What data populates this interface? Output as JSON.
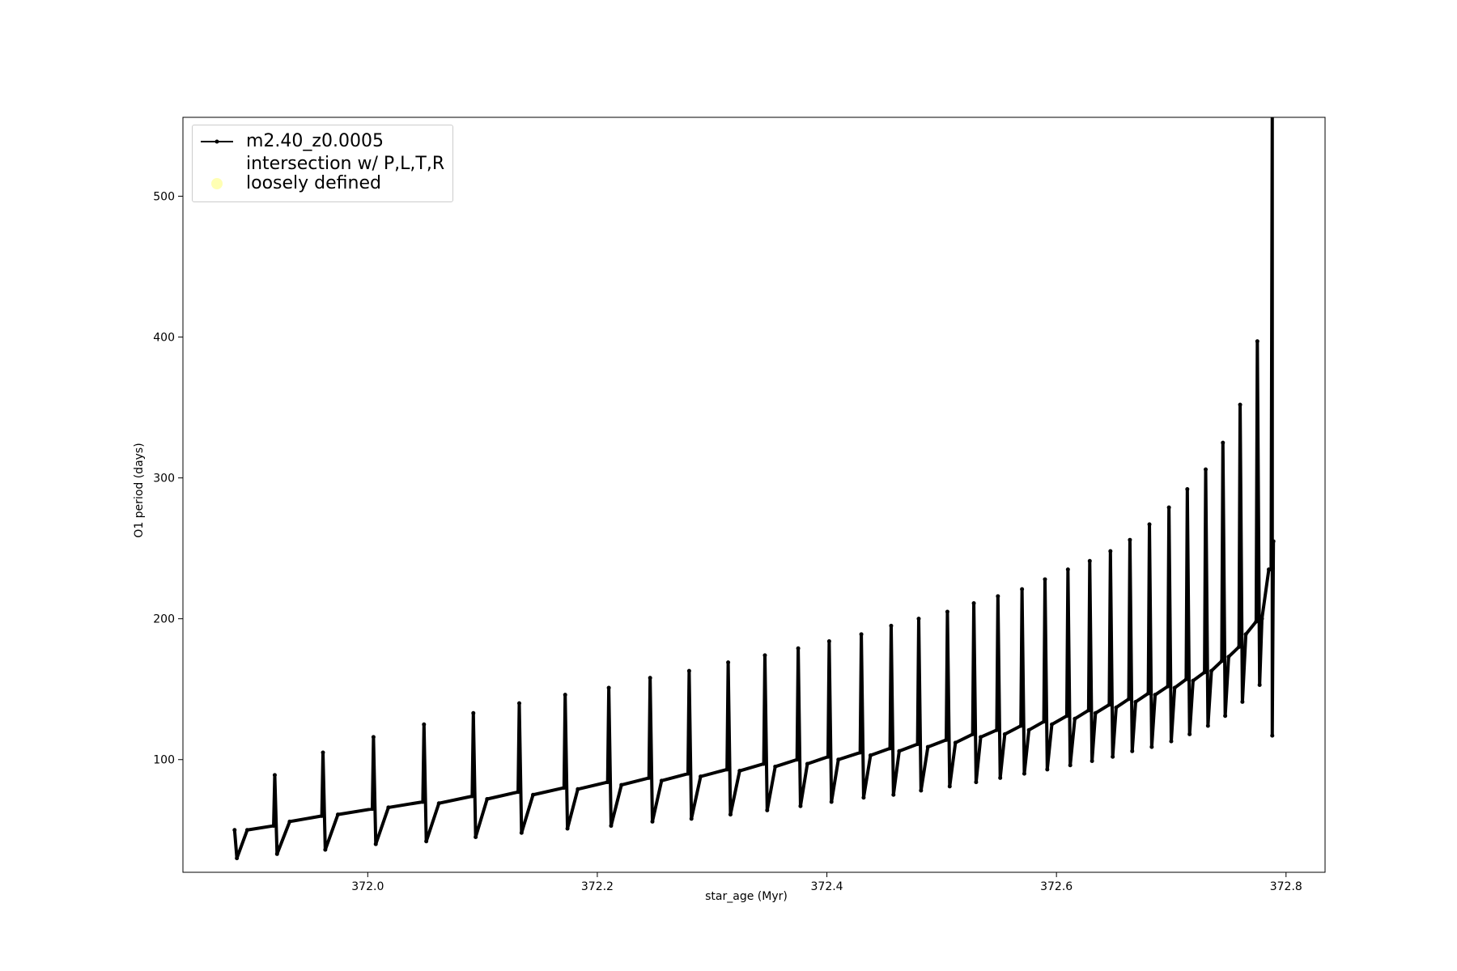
{
  "chart_data": {
    "type": "line",
    "xlabel": "star_age (Myr)",
    "ylabel": "O1 period (days)",
    "xlim": [
      371.839,
      372.834
    ],
    "ylim": [
      20,
      556
    ],
    "xticks": [
      {
        "value": 372.0,
        "label": "372.0"
      },
      372.2,
      372.4,
      372.6,
      372.8
    ],
    "yticks": [
      100,
      200,
      300,
      400,
      500
    ],
    "legend": "upper left",
    "series": [
      {
        "name": "m2.40_z0.0005",
        "color": "#000000",
        "marker": "dot",
        "x": [
          371.884,
          371.886,
          371.895,
          371.918,
          371.919,
          371.921,
          371.932,
          371.96,
          371.961,
          371.963,
          371.974,
          372.004,
          372.005,
          372.007,
          372.018,
          372.048,
          372.049,
          372.051,
          372.062,
          372.091,
          372.092,
          372.094,
          372.104,
          372.131,
          372.132,
          372.134,
          372.144,
          372.171,
          372.172,
          372.174,
          372.183,
          372.209,
          372.21,
          372.212,
          372.221,
          372.245,
          372.246,
          372.248,
          372.256,
          372.279,
          372.28,
          372.282,
          372.29,
          372.313,
          372.314,
          372.316,
          372.324,
          372.345,
          372.346,
          372.348,
          372.355,
          372.374,
          372.375,
          372.377,
          372.383,
          372.401,
          372.402,
          372.404,
          372.41,
          372.429,
          372.43,
          372.432,
          372.438,
          372.455,
          372.456,
          372.458,
          372.463,
          372.479,
          372.48,
          372.482,
          372.488,
          372.504,
          372.505,
          372.507,
          372.512,
          372.527,
          372.528,
          372.53,
          372.534,
          372.548,
          372.549,
          372.551,
          372.555,
          372.569,
          372.57,
          372.572,
          372.576,
          372.589,
          372.59,
          372.592,
          372.596,
          372.609,
          372.61,
          372.612,
          372.616,
          372.628,
          372.629,
          372.631,
          372.634,
          372.646,
          372.647,
          372.649,
          372.652,
          372.663,
          372.664,
          372.666,
          372.669,
          372.68,
          372.681,
          372.683,
          372.686,
          372.697,
          372.698,
          372.7,
          372.703,
          372.713,
          372.714,
          372.716,
          372.719,
          372.729,
          372.73,
          372.732,
          372.735,
          372.744,
          372.745,
          372.747,
          372.75,
          372.759,
          372.76,
          372.762,
          372.765,
          372.774,
          372.775,
          372.777,
          372.779,
          372.785,
          372.787,
          372.788,
          372.788,
          372.789
        ],
        "values": [
          50,
          30,
          50,
          53,
          89,
          33,
          56,
          60,
          105,
          36,
          61,
          65,
          116,
          40,
          66,
          70,
          125,
          42,
          69,
          74,
          133,
          45,
          72,
          77,
          140,
          48,
          75,
          80,
          146,
          51,
          79,
          84,
          151,
          53,
          82,
          87,
          158,
          56,
          85,
          90,
          163,
          58,
          88,
          93,
          169,
          61,
          92,
          97,
          174,
          64,
          95,
          100,
          179,
          67,
          97,
          102,
          184,
          70,
          100,
          105,
          189,
          73,
          103,
          108,
          195,
          75,
          106,
          111,
          200,
          78,
          109,
          114,
          205,
          81,
          112,
          118,
          211,
          84,
          116,
          121,
          216,
          87,
          118,
          124,
          221,
          90,
          121,
          127,
          228,
          93,
          125,
          131,
          235,
          96,
          129,
          135,
          241,
          99,
          133,
          139,
          248,
          102,
          137,
          143,
          256,
          106,
          141,
          147,
          267,
          109,
          146,
          152,
          279,
          113,
          151,
          157,
          292,
          118,
          156,
          162,
          306,
          124,
          163,
          170,
          325,
          131,
          173,
          180,
          352,
          141,
          189,
          198,
          397,
          153,
          200,
          235,
          235,
          560,
          117,
          255
        ]
      },
      {
        "name": "intersection w/ P,L,T,R\nloosely defined",
        "color": "#ffffb3",
        "marker": "circle",
        "x": [],
        "values": []
      }
    ]
  }
}
